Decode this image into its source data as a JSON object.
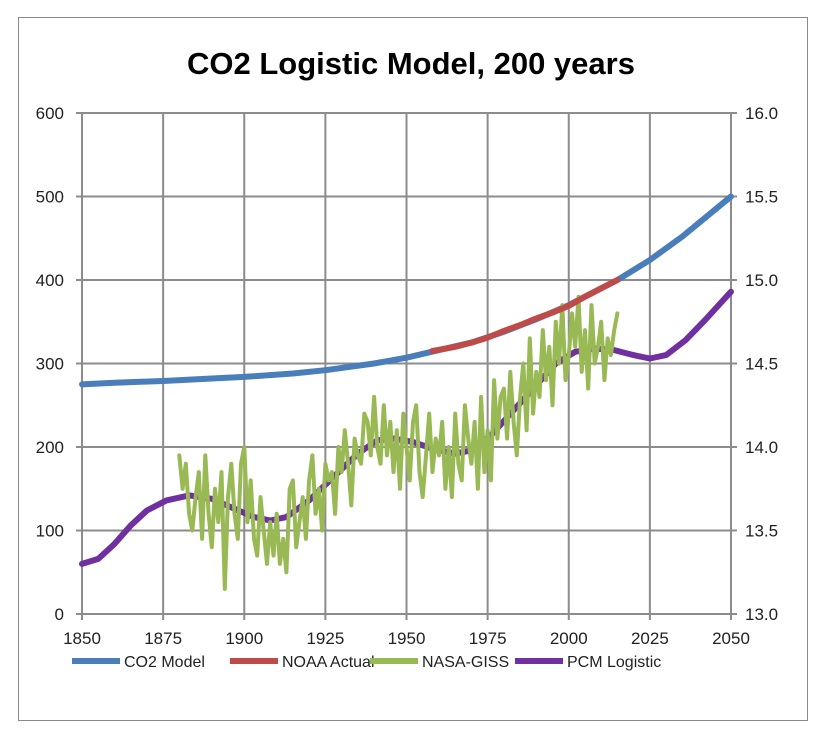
{
  "chart_data": {
    "type": "line",
    "title": "CO2 Logistic Model, 200 years",
    "xlabel": "",
    "ylabel": "",
    "xlim": [
      1850,
      2050
    ],
    "ylim": [
      0,
      600
    ],
    "y2lim": [
      13.0,
      16.0
    ],
    "grid": true,
    "legend_position": "bottom",
    "x_ticks": [
      "1850",
      "1875",
      "1900",
      "1925",
      "1950",
      "1975",
      "2000",
      "2025",
      "2050"
    ],
    "y_ticks": [
      "0",
      "100",
      "200",
      "300",
      "400",
      "500",
      "600"
    ],
    "y2_ticks": [
      "13.0",
      "13.5",
      "14.0",
      "14.5",
      "15.0",
      "15.5",
      "16.0"
    ],
    "series": [
      {
        "name": "CO2 Model",
        "axis": "left",
        "color": "#4a7ebb",
        "x": [
          1850,
          1860,
          1875,
          1890,
          1900,
          1915,
          1925,
          1940,
          1950,
          1960,
          1970,
          1980,
          1990,
          2000,
          2010,
          2015,
          2025,
          2035,
          2050
        ],
        "y": [
          275,
          277,
          279,
          282,
          284,
          288,
          292,
          300,
          307,
          316,
          325,
          338,
          353,
          370,
          390,
          400,
          424,
          452,
          500
        ]
      },
      {
        "name": "NOAA Actual",
        "axis": "left",
        "color": "#be4b48",
        "x": [
          1958,
          1965,
          1970,
          1975,
          1980,
          1985,
          1990,
          1995,
          2000,
          2005,
          2010,
          2015
        ],
        "y": [
          315,
          320,
          325,
          331,
          339,
          346,
          354,
          361,
          369,
          380,
          390,
          400
        ]
      },
      {
        "name": "NASA-GISS",
        "axis": "right",
        "color": "#98b954",
        "x_start": 1880,
        "y": [
          13.95,
          13.75,
          13.9,
          13.6,
          13.5,
          13.7,
          13.85,
          13.45,
          13.95,
          13.6,
          13.4,
          13.75,
          13.55,
          13.85,
          13.15,
          13.7,
          13.9,
          13.6,
          13.45,
          13.9,
          14.0,
          13.55,
          13.8,
          13.45,
          13.35,
          13.7,
          13.5,
          13.3,
          13.55,
          13.35,
          13.6,
          13.3,
          13.45,
          13.25,
          13.75,
          13.8,
          13.4,
          13.55,
          13.7,
          13.45,
          13.8,
          13.95,
          13.6,
          13.75,
          13.5,
          13.9,
          13.8,
          13.85,
          13.6,
          14.0,
          13.85,
          14.1,
          13.9,
          13.65,
          14.05,
          13.95,
          13.9,
          14.2,
          14.15,
          13.95,
          14.3,
          14.0,
          13.9,
          14.25,
          13.95,
          14.15,
          13.85,
          14.1,
          13.75,
          14.2,
          14.0,
          13.8,
          14.15,
          14.25,
          13.85,
          13.7,
          13.95,
          14.2,
          13.85,
          14.05,
          13.95,
          14.15,
          13.75,
          14.0,
          13.7,
          14.2,
          13.9,
          13.8,
          14.25,
          14.05,
          13.9,
          14.15,
          13.75,
          14.3,
          13.85,
          14.1,
          13.8,
          14.4,
          14.05,
          14.3,
          14.35,
          14.05,
          14.45,
          14.15,
          13.95,
          14.3,
          14.5,
          14.1,
          14.65,
          14.2,
          14.45,
          14.3,
          14.7,
          14.4,
          14.6,
          14.25,
          14.75,
          14.5,
          14.85,
          14.4,
          14.55,
          14.8,
          14.6,
          14.9,
          14.45,
          14.7,
          14.35,
          14.85,
          14.5,
          14.6,
          14.75,
          14.4,
          14.65,
          14.55,
          14.7,
          14.8
        ]
      },
      {
        "name": "PCM Logistic",
        "axis": "right",
        "color": "#7030a0",
        "x": [
          1850,
          1855,
          1860,
          1865,
          1870,
          1876,
          1883,
          1890,
          1897,
          1903,
          1908,
          1913,
          1920,
          1928,
          1935,
          1941,
          1946,
          1952,
          1958,
          1965,
          1970,
          1976,
          1983,
          1990,
          1996,
          2002,
          2008,
          2014,
          2020,
          2025,
          2030,
          2036,
          2042,
          2050
        ],
        "y": [
          13.3,
          13.33,
          13.42,
          13.53,
          13.62,
          13.68,
          13.71,
          13.69,
          13.63,
          13.58,
          13.56,
          13.58,
          13.68,
          13.83,
          13.96,
          14.04,
          14.05,
          14.03,
          13.99,
          13.96,
          13.98,
          14.07,
          14.22,
          14.37,
          14.5,
          14.57,
          14.59,
          14.58,
          14.55,
          14.53,
          14.55,
          14.64,
          14.76,
          14.93
        ]
      }
    ]
  }
}
